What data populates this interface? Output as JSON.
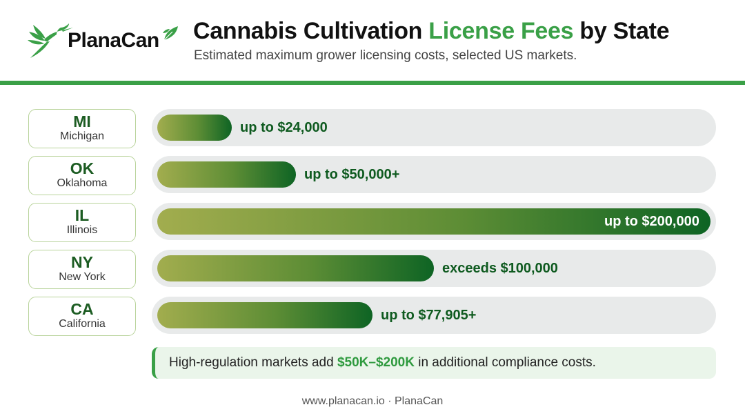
{
  "brand": {
    "name": "PlanaCan",
    "logo_icon": "hummingbird-leaf-icon",
    "accent_color": "#3aa047"
  },
  "header": {
    "title_pre": "Cannabis Cultivation ",
    "title_highlight": "License Fees",
    "title_post": " by State",
    "subtitle": "Estimated maximum grower licensing costs, selected US markets."
  },
  "chart_data": {
    "type": "bar",
    "orientation": "horizontal",
    "title": "Cannabis Cultivation License Fees by State",
    "subtitle": "Estimated maximum grower licensing costs, selected US markets.",
    "xlim": [
      0,
      200000
    ],
    "grid": false,
    "categories": [
      "MI",
      "OK",
      "IL",
      "NY",
      "CA"
    ],
    "states": [
      {
        "code": "MI",
        "name": "Michigan",
        "value": 24000,
        "label": "up to $24,000"
      },
      {
        "code": "OK",
        "name": "Oklahoma",
        "value": 50000,
        "label": "up to $50,000+"
      },
      {
        "code": "IL",
        "name": "Illinois",
        "value": 200000,
        "label": "up to $200,000"
      },
      {
        "code": "NY",
        "name": "New York",
        "value": 100000,
        "label": "exceeds $100,000"
      },
      {
        "code": "CA",
        "name": "California",
        "value": 77905,
        "label": "up to $77,905+"
      }
    ]
  },
  "note": {
    "pre": "High-regulation markets add ",
    "highlight": "$50K–$200K",
    "post": " in additional compliance costs."
  },
  "footer": {
    "text": "www.planacan.io · PlanaCan"
  }
}
